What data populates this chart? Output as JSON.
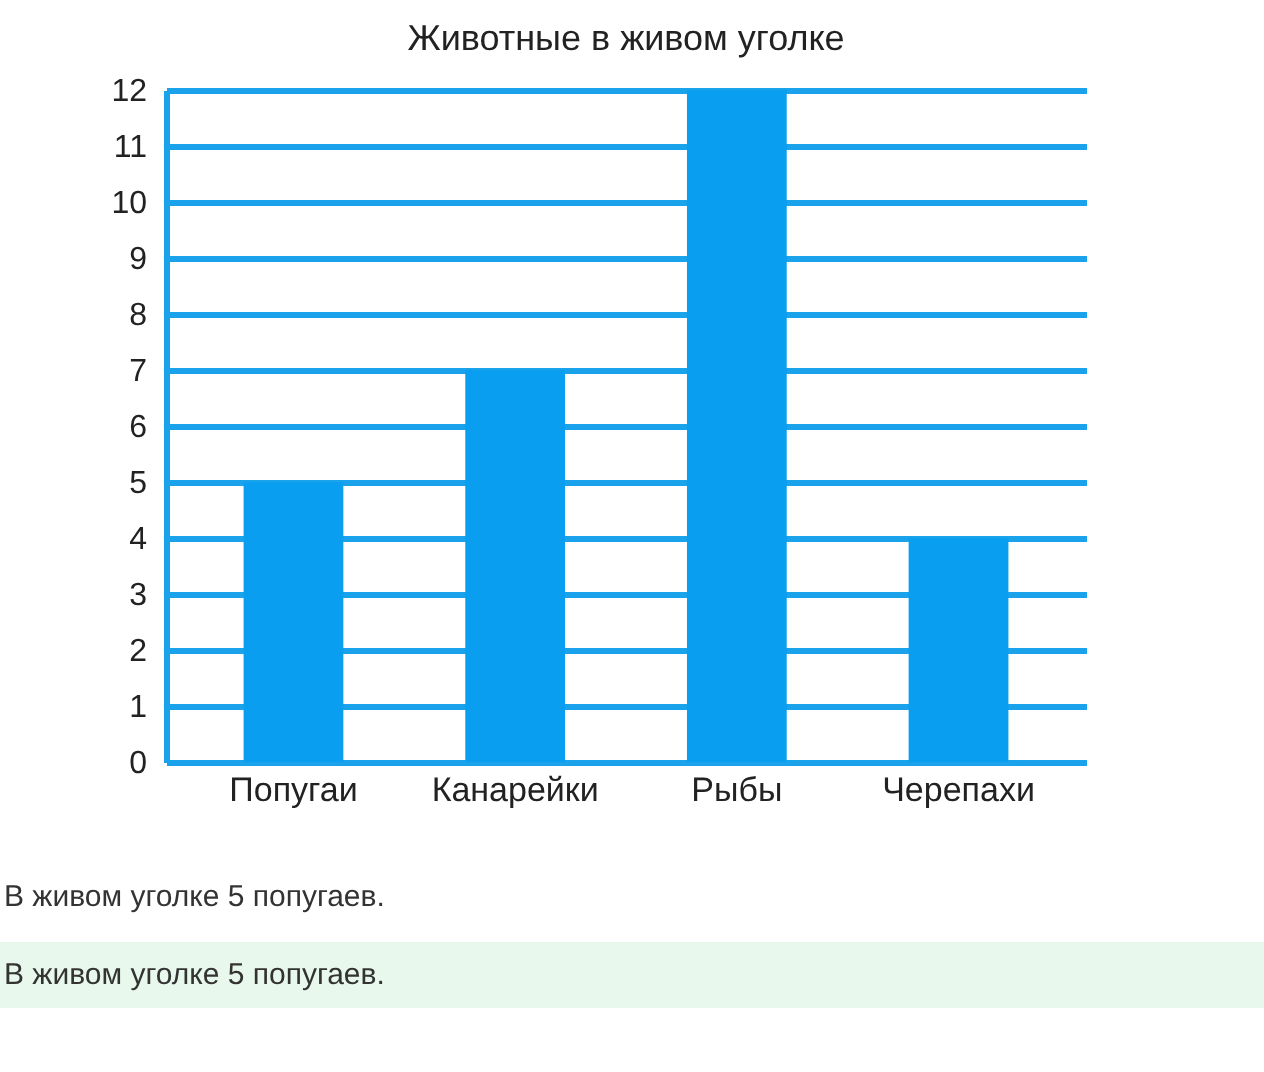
{
  "chart_data": {
    "type": "bar",
    "title": "Животные в живом уголке",
    "categories": [
      "Попугаи",
      "Канарейки",
      "Рыбы",
      "Черепахи"
    ],
    "values": [
      5,
      7,
      12,
      4
    ],
    "color": "#0a9ef0",
    "ylim": [
      0,
      12
    ],
    "yticks": [
      0,
      1,
      2,
      3,
      4,
      5,
      6,
      7,
      8,
      9,
      10,
      11,
      12
    ],
    "grid": "y",
    "annotations": [
      "В живом уголке 5 попугаев.",
      "В живом уголке 5 попугаев."
    ]
  }
}
